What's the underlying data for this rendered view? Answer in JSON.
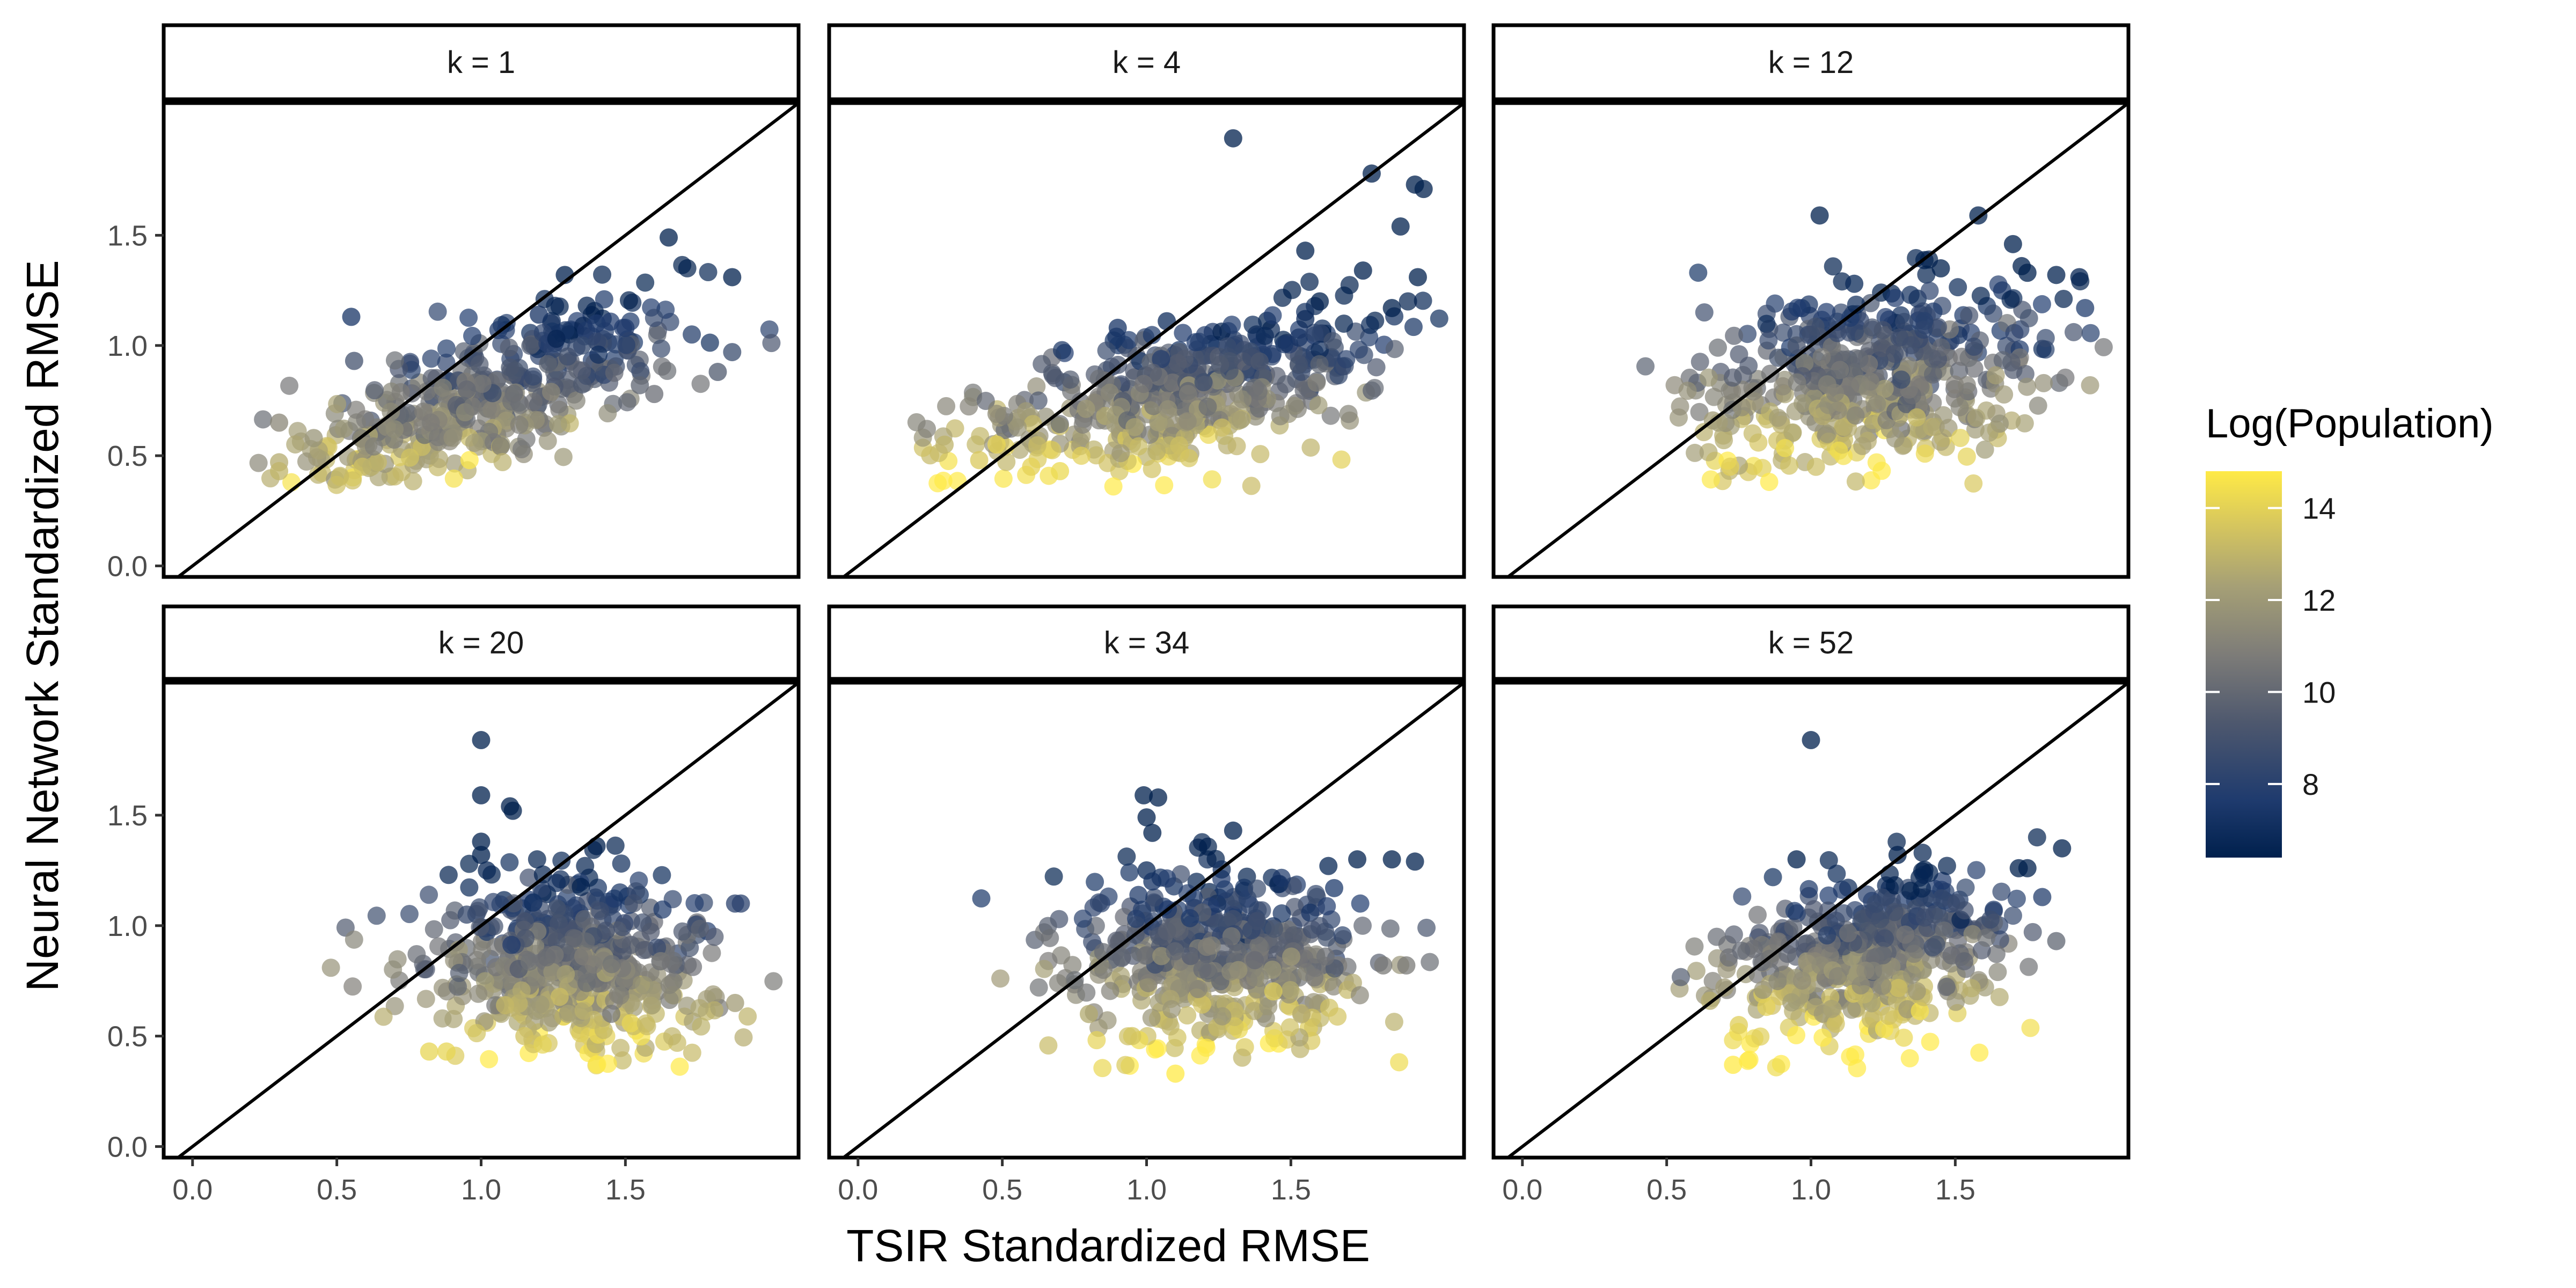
{
  "chart_data": {
    "type": "scatter",
    "xlabel": "TSIR Standardized RMSE",
    "ylabel": "Neural Network Standardized RMSE",
    "xlim": [
      -0.1,
      2.1
    ],
    "ylim": [
      -0.05,
      2.1
    ],
    "x_ticks": [
      "0.0",
      "0.5",
      "1.0",
      "1.5"
    ],
    "y_ticks": [
      "0.0",
      "0.5",
      "1.0",
      "1.5"
    ],
    "grid": false,
    "reference_line": "y = x",
    "color_scale": {
      "title": "Log(Population)",
      "palette": "cividis",
      "min": 6.4,
      "max": 14.8,
      "ticks": [
        "8",
        "10",
        "12",
        "14"
      ],
      "tick_values": [
        8,
        10,
        12,
        14
      ],
      "low_color": "#00204d",
      "mid_color": "#7c7b78",
      "high_color": "#ffea46"
    },
    "panels": [
      {
        "label": "k = 1",
        "points": [
          [
            1.29,
            1.32
          ],
          [
            1.65,
            1.49
          ],
          [
            1.87,
            1.31
          ],
          [
            1.87,
            0.97
          ],
          [
            1.82,
            0.88
          ],
          [
            1.55,
            0.82
          ],
          [
            1.6,
            0.78
          ],
          [
            1.73,
            1.05
          ],
          [
            1.5,
            1.08
          ],
          [
            1.2,
            1.14
          ],
          [
            1.06,
            1.07
          ],
          [
            0.55,
            1.13
          ],
          [
            0.56,
            0.93
          ],
          [
            0.3,
            0.47
          ],
          [
            0.3,
            0.43
          ],
          [
            0.3,
            0.65
          ],
          [
            0.42,
            0.58
          ],
          [
            0.7,
            0.62
          ],
          [
            0.62,
            0.45
          ],
          [
            0.8,
            0.7
          ],
          [
            0.95,
            0.8
          ],
          [
            1.1,
            0.9
          ],
          [
            1.3,
            0.95
          ],
          [
            1.35,
            1.0
          ],
          [
            1.4,
            1.1
          ]
        ],
        "cloud": {
          "cx": 1.0,
          "cy": 0.74,
          "sx": 0.36,
          "sy": 0.16,
          "slope": 0.45,
          "n": 460,
          "color_base": 10.5,
          "color_slope": -2.6
        }
      },
      {
        "label": "k = 4",
        "points": [
          [
            1.3,
            1.94
          ],
          [
            1.78,
            1.78
          ],
          [
            1.93,
            1.73
          ],
          [
            1.96,
            1.71
          ],
          [
            1.88,
            1.54
          ],
          [
            1.55,
            1.43
          ],
          [
            1.75,
            1.34
          ],
          [
            1.94,
            1.31
          ],
          [
            0.48,
            0.69
          ],
          [
            0.42,
            0.48
          ],
          [
            0.9,
            1.08
          ],
          [
            1.07,
            1.11
          ],
          [
            0.3,
            0.55
          ],
          [
            1.55,
            1.12
          ],
          [
            1.6,
            1.2
          ],
          [
            1.85,
            1.17
          ],
          [
            0.6,
            0.45
          ],
          [
            0.7,
            0.43
          ]
        ],
        "cloud": {
          "cx": 1.13,
          "cy": 0.78,
          "sx": 0.4,
          "sy": 0.15,
          "slope": 0.28,
          "n": 520,
          "color_base": 10.5,
          "color_slope": -3.2
        }
      },
      {
        "label": "k = 12",
        "points": [
          [
            1.03,
            1.59
          ],
          [
            1.58,
            1.59
          ],
          [
            1.7,
            1.46
          ],
          [
            1.73,
            1.36
          ],
          [
            1.75,
            1.33
          ],
          [
            1.85,
            1.32
          ],
          [
            1.93,
            1.31
          ],
          [
            1.95,
            1.17
          ],
          [
            0.76,
            0.72
          ],
          [
            0.66,
            0.66
          ],
          [
            0.68,
            0.65
          ],
          [
            0.72,
            0.45
          ],
          [
            0.95,
            1.0
          ],
          [
            1.0,
            1.05
          ],
          [
            1.15,
            1.28
          ],
          [
            1.45,
            1.35
          ]
        ],
        "cloud": {
          "cx": 1.22,
          "cy": 0.85,
          "sx": 0.3,
          "sy": 0.21,
          "slope": 0.2,
          "n": 520,
          "color_base": 10.5,
          "color_slope": -3.6
        }
      },
      {
        "label": "k = 20",
        "points": [
          [
            1.0,
            1.84
          ],
          [
            1.0,
            1.59
          ],
          [
            1.1,
            1.54
          ],
          [
            1.11,
            1.52
          ],
          [
            1.4,
            1.36
          ],
          [
            1.9,
            1.1
          ],
          [
            1.88,
            1.1
          ],
          [
            1.88,
            0.65
          ],
          [
            0.88,
            0.43
          ],
          [
            0.82,
            0.43
          ],
          [
            1.15,
            0.5
          ],
          [
            0.95,
            1.05
          ],
          [
            1.0,
            1.38
          ],
          [
            1.0,
            1.32
          ],
          [
            1.02,
            1.25
          ]
        ],
        "cloud": {
          "cx": 1.3,
          "cy": 0.82,
          "sx": 0.24,
          "sy": 0.2,
          "slope": -0.1,
          "n": 560,
          "color_base": 10.6,
          "color_slope": -3.6
        }
      },
      {
        "label": "k = 34",
        "points": [
          [
            0.99,
            1.59
          ],
          [
            1.04,
            1.58
          ],
          [
            1.0,
            1.49
          ],
          [
            1.02,
            1.42
          ],
          [
            1.3,
            1.43
          ],
          [
            1.1,
            0.33
          ],
          [
            0.85,
            0.88
          ],
          [
            0.85,
            0.8
          ],
          [
            0.8,
            0.6
          ],
          [
            0.95,
            0.5
          ],
          [
            1.85,
            1.3
          ],
          [
            1.73,
            1.3
          ],
          [
            1.63,
            1.27
          ],
          [
            1.82,
            0.82
          ],
          [
            1.93,
            1.29
          ],
          [
            1.9,
            0.82
          ],
          [
            1.62,
            0.86
          ],
          [
            1.65,
            1.17
          ],
          [
            1.0,
            1.25
          ],
          [
            1.02,
            1.2
          ]
        ],
        "cloud": {
          "cx": 1.25,
          "cy": 0.84,
          "sx": 0.24,
          "sy": 0.19,
          "slope": -0.1,
          "n": 540,
          "color_base": 10.5,
          "color_slope": -3.4
        }
      },
      {
        "label": "k = 52",
        "points": [
          [
            1.0,
            1.84
          ],
          [
            0.95,
            1.3
          ],
          [
            1.87,
            1.35
          ],
          [
            1.75,
            1.26
          ],
          [
            1.72,
            1.26
          ],
          [
            0.73,
            0.37
          ],
          [
            0.65,
            0.66
          ],
          [
            0.7,
            0.72
          ],
          [
            1.3,
            1.32
          ],
          [
            1.85,
            0.93
          ],
          [
            0.75,
            0.55
          ]
        ],
        "cloud": {
          "cx": 1.2,
          "cy": 0.86,
          "sx": 0.24,
          "sy": 0.17,
          "slope": 0.18,
          "n": 520,
          "color_base": 10.6,
          "color_slope": -3.6
        }
      }
    ]
  }
}
